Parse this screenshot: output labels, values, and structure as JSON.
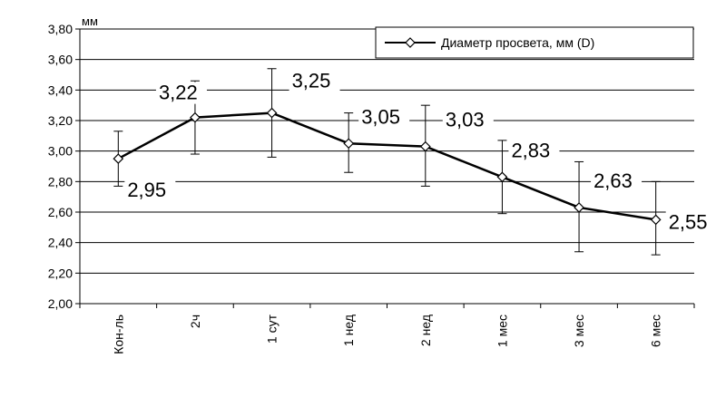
{
  "chart_data": {
    "type": "line",
    "unit": "мм",
    "categories": [
      "Кон-ль",
      "2ч",
      "1 сут",
      "1 нед",
      "2 нед",
      "1 мес",
      "3 мес",
      "6 мес"
    ],
    "series": [
      {
        "name": "Диаметр просвета, мм (D)",
        "values": [
          2.95,
          3.22,
          3.25,
          3.05,
          3.03,
          2.83,
          2.63,
          2.55
        ],
        "error_upper": [
          3.13,
          3.46,
          3.54,
          3.25,
          3.3,
          3.07,
          2.93,
          2.8
        ],
        "error_lower": [
          2.77,
          2.98,
          2.96,
          2.86,
          2.77,
          2.59,
          2.34,
          2.32
        ],
        "data_labels": [
          "2,95",
          "3,22",
          "3,25",
          "3,05",
          "3,03",
          "2,83",
          "2,63",
          "2,55"
        ]
      }
    ],
    "ylim": [
      2.0,
      3.8
    ],
    "yticks": [
      "2,00",
      "2,20",
      "2,40",
      "2,60",
      "2,80",
      "3,00",
      "3,20",
      "3,40",
      "3,60",
      "3,80"
    ],
    "grid": true,
    "legend_position": "top-right",
    "colors": {
      "line": "#000000",
      "marker_fill": "#ffffff",
      "grid": "#000000"
    }
  }
}
